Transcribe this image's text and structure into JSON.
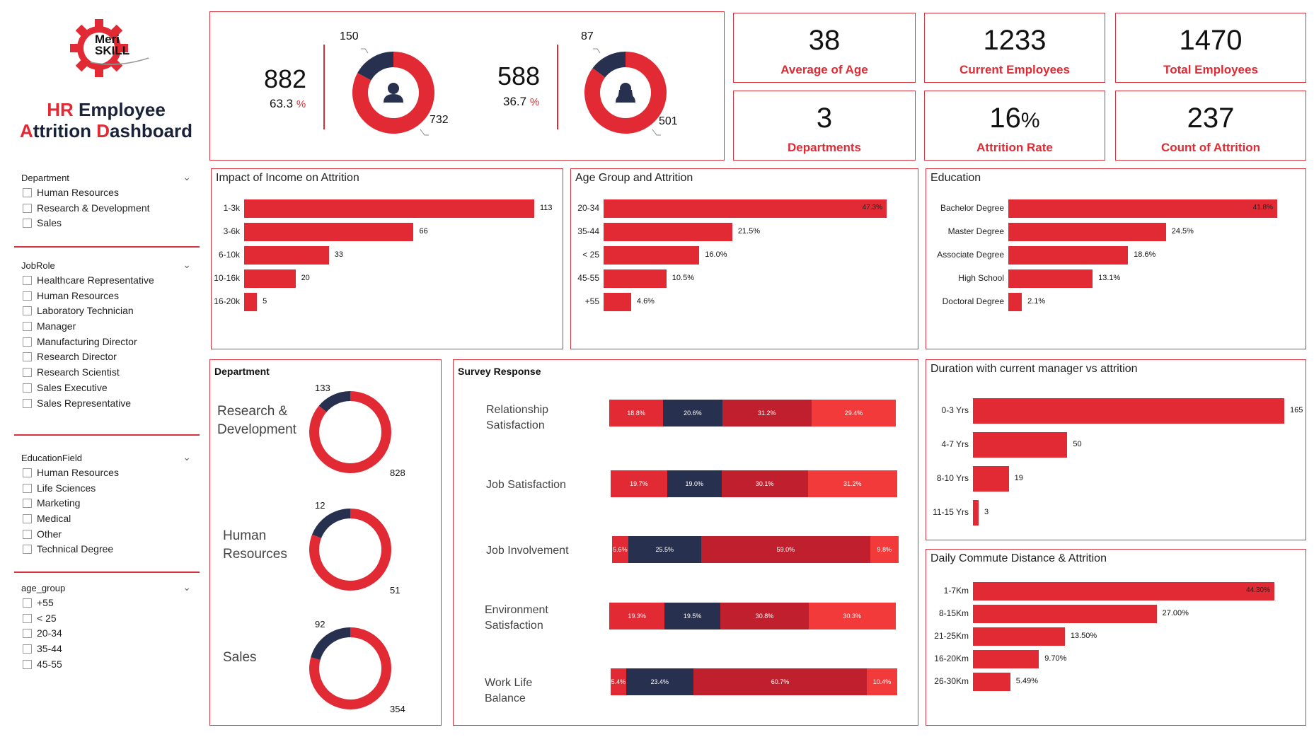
{
  "brand": {
    "logo_text_1": "Meri",
    "logo_text_2": "SKILL"
  },
  "title": {
    "p1": "HR",
    "p2": " Employee",
    "p3": "A",
    "p4": "ttrition ",
    "p5": "D",
    "p6": "ashboard"
  },
  "colors": {
    "red": "#e12a33",
    "navy": "#27314f",
    "dark_red": "#c0202d",
    "light_red": "#f23a3a"
  },
  "slicers": [
    {
      "header": "Department",
      "items": [
        "Human Resources",
        "Research & Development",
        "Sales"
      ]
    },
    {
      "header": "JobRole",
      "items": [
        "Healthcare Representative",
        "Human Resources",
        "Laboratory Technician",
        "Manager",
        "Manufacturing Director",
        "Research Director",
        "Research Scientist",
        "Sales Executive",
        "Sales Representative"
      ]
    },
    {
      "header": "EducationField",
      "items": [
        "Human Resources",
        "Life Sciences",
        "Marketing",
        "Medical",
        "Other",
        "Technical Degree"
      ]
    },
    {
      "header": "age_group",
      "items": [
        "+55",
        "< 25",
        "20-34",
        "35-44",
        "45-55"
      ]
    }
  ],
  "gender": {
    "male": {
      "count": "882",
      "pct": "63.3",
      "unit": "%",
      "attr": 150,
      "stay": 732,
      "attr_label": "150",
      "stay_label": "732",
      "icon": "male-user-icon"
    },
    "female": {
      "count": "588",
      "pct": "36.7",
      "unit": "%",
      "attr": 87,
      "stay": 501,
      "attr_label": "87",
      "stay_label": "501",
      "icon": "female-user-icon"
    }
  },
  "kpis": [
    {
      "value": "38",
      "unit": "",
      "label": "Average of Age"
    },
    {
      "value": "1233",
      "unit": "",
      "label": "Current Employees"
    },
    {
      "value": "1470",
      "unit": "",
      "label": "Total Employees"
    },
    {
      "value": "3",
      "unit": "",
      "label": "Departments"
    },
    {
      "value": "16",
      "unit": "%",
      "label": "Attrition Rate"
    },
    {
      "value": "237",
      "unit": "",
      "label": "Count of Attrition"
    }
  ],
  "chart_data": [
    {
      "id": "income",
      "type": "bar",
      "orientation": "horizontal",
      "title": "Impact of Income on Attrition",
      "categories": [
        "1-3k",
        "3-6k",
        "6-10k",
        "10-16k",
        "16-20k"
      ],
      "values": [
        113,
        66,
        33,
        20,
        5
      ],
      "labels": [
        "113",
        "66",
        "33",
        "20",
        "5"
      ],
      "xlim": [
        0,
        113
      ]
    },
    {
      "id": "age",
      "type": "bar",
      "orientation": "horizontal",
      "title": "Age Group and Attrition",
      "categories": [
        "20-34",
        "35-44",
        "< 25",
        "45-55",
        "+55"
      ],
      "values": [
        47.3,
        21.5,
        16.0,
        10.5,
        4.6
      ],
      "labels": [
        "47.3%",
        "21.5%",
        "16.0%",
        "10.5%",
        "4.6%"
      ],
      "xlim": [
        0,
        47.3
      ]
    },
    {
      "id": "education",
      "type": "bar",
      "orientation": "horizontal",
      "title": "Education",
      "categories": [
        "Bachelor Degree",
        "Master Degree",
        "Associate Degree",
        "High School",
        "Doctoral Degree"
      ],
      "values": [
        41.8,
        24.5,
        18.6,
        13.1,
        2.1
      ],
      "labels": [
        "41.8%",
        "24.5%",
        "18.6%",
        "13.1%",
        "2.1%"
      ],
      "xlim": [
        0,
        41.8
      ]
    },
    {
      "id": "department",
      "type": "pie",
      "title": "Department",
      "categories": [
        "Research & Development",
        "Human Resources",
        "Sales"
      ],
      "series": [
        {
          "values": [
            133,
            12,
            92
          ]
        },
        {
          "values": [
            828,
            51,
            354
          ]
        }
      ],
      "labels_attr": [
        "133",
        "12",
        "92"
      ],
      "labels_stay": [
        "828",
        "51",
        "354"
      ]
    },
    {
      "id": "survey",
      "type": "bar",
      "stacked": true,
      "orientation": "horizontal",
      "title": "Survey Response",
      "categories": [
        "Relationship Satisfaction",
        "Job Satisfaction",
        "Job Involvement",
        "Environment Satisfaction",
        "Work Life Balance"
      ],
      "series": [
        {
          "values": [
            18.8,
            19.7,
            5.6,
            19.3,
            5.4
          ],
          "labels": [
            "18.8%",
            "19.7%",
            "5.6%",
            "19.3%",
            "5.4%"
          ]
        },
        {
          "values": [
            20.6,
            19.0,
            25.5,
            19.5,
            23.4
          ],
          "labels": [
            "20.6%",
            "19.0%",
            "25.5%",
            "19.5%",
            "23.4%"
          ]
        },
        {
          "values": [
            31.2,
            30.1,
            59.0,
            30.8,
            60.7
          ],
          "labels": [
            "31.2%",
            "30.1%",
            "59.0%",
            "30.8%",
            "60.7%"
          ]
        },
        {
          "values": [
            29.4,
            31.2,
            9.8,
            30.3,
            10.4
          ],
          "labels": [
            "29.4%",
            "31.2%",
            "9.8%",
            "30.3%",
            "10.4%"
          ]
        }
      ]
    },
    {
      "id": "manager",
      "type": "bar",
      "orientation": "horizontal",
      "title": "Duration with current manager vs attrition",
      "categories": [
        "0-3 Yrs",
        "4-7 Yrs",
        "8-10 Yrs",
        "11-15 Yrs"
      ],
      "values": [
        165,
        50,
        19,
        3
      ],
      "labels": [
        "165",
        "50",
        "19",
        "3"
      ],
      "xlim": [
        0,
        165
      ]
    },
    {
      "id": "commute",
      "type": "bar",
      "orientation": "horizontal",
      "title": "Daily Commute Distance & Attrition",
      "categories": [
        "1-7Km",
        "8-15Km",
        "21-25Km",
        "16-20Km",
        "26-30Km"
      ],
      "values": [
        44.3,
        27.0,
        13.5,
        9.7,
        5.49
      ],
      "labels": [
        "44.30%",
        "27.00%",
        "13.50%",
        "9.70%",
        "5.49%"
      ],
      "xlim": [
        0,
        44.3
      ]
    }
  ]
}
